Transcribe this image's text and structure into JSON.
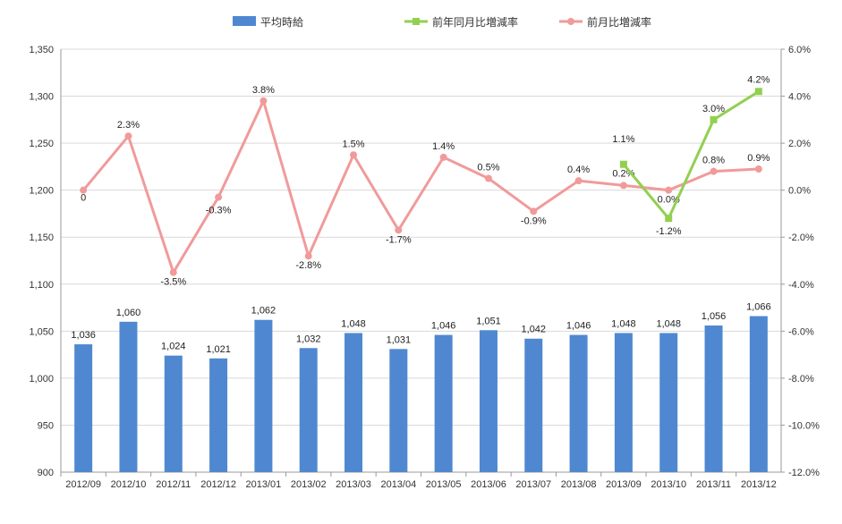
{
  "chart_data": {
    "type": "bar",
    "categories": [
      "2012/09",
      "2012/10",
      "2012/11",
      "2012/12",
      "2013/01",
      "2013/02",
      "2013/03",
      "2013/04",
      "2013/05",
      "2013/06",
      "2013/07",
      "2013/08",
      "2013/09",
      "2013/10",
      "2013/11",
      "2013/12"
    ],
    "series": [
      {
        "name": "平均時給",
        "type": "bar",
        "axis": "left",
        "color": "#4f88d0",
        "values": [
          1036,
          1060,
          1024,
          1021,
          1062,
          1032,
          1048,
          1031,
          1046,
          1051,
          1042,
          1046,
          1048,
          1048,
          1056,
          1066
        ],
        "labels": [
          "1,036",
          "1,060",
          "1,024",
          "1,021",
          "1,062",
          "1,032",
          "1,048",
          "1,031",
          "1,046",
          "1,051",
          "1,042",
          "1,046",
          "1,048",
          "1,048",
          "1,056",
          "1,066"
        ]
      },
      {
        "name": "前年同月比増減率",
        "type": "line",
        "axis": "right",
        "color": "#92d050",
        "values": [
          null,
          null,
          null,
          null,
          null,
          null,
          null,
          null,
          null,
          null,
          null,
          null,
          1.1,
          -1.2,
          3.0,
          4.2
        ],
        "labels": [
          "",
          "",
          "",
          "",
          "",
          "",
          "",
          "",
          "",
          "",
          "",
          "",
          "1.1%",
          "-1.2%",
          "3.0%",
          "4.2%"
        ]
      },
      {
        "name": "前月比増減率",
        "type": "line",
        "axis": "right",
        "color": "#f19a9a",
        "values": [
          0,
          2.3,
          -3.5,
          -0.3,
          3.8,
          -2.8,
          1.5,
          -1.7,
          1.4,
          0.5,
          -0.9,
          0.4,
          0.2,
          0.0,
          0.8,
          0.9
        ],
        "labels": [
          "0",
          "2.3%",
          "-3.5%",
          "-0.3%",
          "3.8%",
          "-2.8%",
          "1.5%",
          "-1.7%",
          "1.4%",
          "0.5%",
          "-0.9%",
          "0.4%",
          "0.2%",
          "0.0%",
          "0.8%",
          "0.9%"
        ]
      }
    ],
    "y_left": {
      "ylim": [
        900,
        1350
      ],
      "ticks": [
        "900",
        "950",
        "1,000",
        "1,050",
        "1,100",
        "1,150",
        "1,200",
        "1,250",
        "1,300",
        "1,350"
      ]
    },
    "y_right": {
      "ylim": [
        -12,
        6
      ],
      "ticks": [
        "-12.0%",
        "-10.0%",
        "-8.0%",
        "-6.0%",
        "-4.0%",
        "-2.0%",
        "0.0%",
        "2.0%",
        "4.0%",
        "6.0%"
      ]
    },
    "grid": true,
    "legend_position": "top",
    "title": "",
    "xlabel": "",
    "ylabel": ""
  }
}
